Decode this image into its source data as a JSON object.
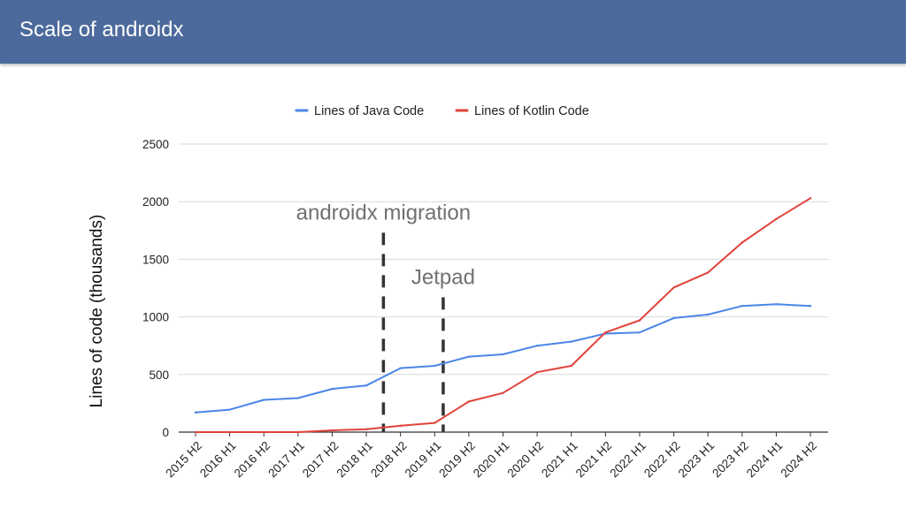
{
  "header": {
    "title": "Scale of androidx"
  },
  "colors": {
    "header_bg": "#4c6a9c",
    "java": "#4a86e8",
    "kotlin": "#e0433a",
    "grid": "#d9d9d9",
    "annotation_line": "#333333",
    "annotation_text": "#707070"
  },
  "chart_data": {
    "type": "line",
    "title": "",
    "xlabel": "",
    "ylabel": "Lines of code (thousands)",
    "ylim": [
      0,
      2500
    ],
    "yticks": [
      0,
      500,
      1000,
      1500,
      2000,
      2500
    ],
    "grid": true,
    "legend_position": "top-center",
    "categories": [
      "2015 H2",
      "2016 H1",
      "2016 H2",
      "2017 H1",
      "2017 H2",
      "2018 H1",
      "2018 H2",
      "2019 H1",
      "2019 H2",
      "2020 H1",
      "2020 H2",
      "2021 H1",
      "2021 H2",
      "2022 H1",
      "2022 H2",
      "2023 H1",
      "2023 H2",
      "2024 H1",
      "2024 H2"
    ],
    "series": [
      {
        "name": "Lines of Java Code",
        "color": "#4a86e8",
        "values": [
          170,
          195,
          280,
          295,
          375,
          405,
          555,
          575,
          655,
          675,
          750,
          785,
          855,
          865,
          990,
          1020,
          1095,
          1110,
          1095
        ]
      },
      {
        "name": "Lines of Kotlin Code",
        "color": "#e0433a",
        "values": [
          0,
          0,
          0,
          0,
          15,
          25,
          55,
          80,
          265,
          340,
          520,
          575,
          865,
          970,
          1255,
          1385,
          1645,
          1850,
          2030
        ]
      }
    ],
    "annotations": [
      {
        "label": "androidx migration",
        "x": 5.5,
        "y_top": 1730
      },
      {
        "label": "Jetpad",
        "x": 7.25,
        "y_top": 1170
      }
    ]
  }
}
